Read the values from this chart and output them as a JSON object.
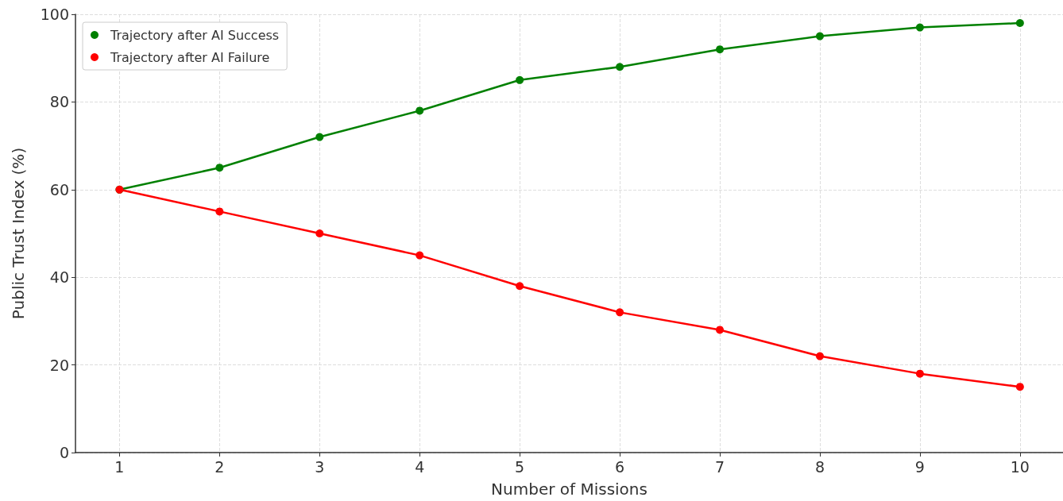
{
  "chart_data": {
    "type": "line",
    "xlabel": "Number of Missions",
    "ylabel": "Public Trust Index (%)",
    "x": [
      1,
      2,
      3,
      4,
      5,
      6,
      7,
      8,
      9,
      10
    ],
    "series": [
      {
        "name": "Trajectory after AI Success",
        "color": "#008000",
        "values": [
          60,
          65,
          72,
          78,
          85,
          88,
          92,
          95,
          97,
          98
        ]
      },
      {
        "name": "Trajectory after AI Failure",
        "color": "#ff0000",
        "values": [
          60,
          55,
          50,
          45,
          38,
          32,
          28,
          22,
          18,
          15
        ]
      }
    ],
    "xlim": [
      0.56,
      10.43
    ],
    "xticks": [
      1,
      2,
      3,
      4,
      5,
      6,
      7,
      8,
      9,
      10
    ],
    "ylim": [
      0,
      100
    ],
    "yticks": [
      0,
      20,
      40,
      60,
      80,
      100
    ],
    "grid": true,
    "legend": "top left",
    "marker": "circle",
    "line_style": "solid"
  }
}
